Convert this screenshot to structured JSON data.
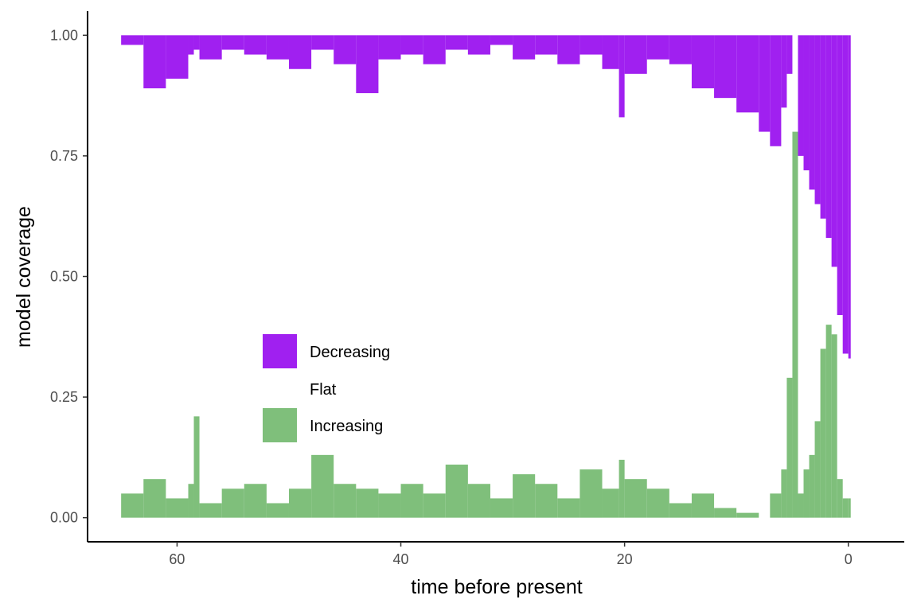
{
  "colors": {
    "decreasing": "#A020F0",
    "flat": "#FFFFFF",
    "increasing": "#7FBF7B",
    "axis": "#000000",
    "tick_text": "#4D4D4D"
  },
  "chart_data": {
    "type": "area",
    "stacked": true,
    "xlabel": "time before present",
    "ylabel": "model coverage",
    "xlim": [
      68,
      -5
    ],
    "ylim": [
      -0.05,
      1.05
    ],
    "x_reversed": true,
    "x_ticks": [
      60,
      40,
      20,
      0
    ],
    "x_tick_labels": [
      "60",
      "40",
      "20",
      "0"
    ],
    "y_ticks": [
      0,
      0.25,
      0.5,
      0.75,
      1.0
    ],
    "y_tick_labels": [
      "0.00",
      "0.25",
      "0.50",
      "0.75",
      "1.00"
    ],
    "grid": false,
    "legend_position": "inside-left-middle",
    "legend": [
      {
        "name": "Decreasing",
        "color": "#A020F0"
      },
      {
        "name": "Flat",
        "color": "#FFFFFF"
      },
      {
        "name": "Increasing",
        "color": "#7FBF7B"
      }
    ],
    "x": [
      65,
      63,
      61,
      59,
      58.5,
      58,
      56,
      54,
      52,
      50,
      48,
      46,
      44,
      42,
      40,
      38,
      36,
      34,
      32,
      30,
      28,
      26,
      24,
      22,
      20.5,
      20,
      18,
      16,
      14,
      12,
      10,
      8,
      7,
      6,
      5.5,
      5,
      4.5,
      4,
      3.5,
      3,
      2.5,
      2,
      1.5,
      1,
      0.5,
      0
    ],
    "series": [
      {
        "name": "Increasing",
        "values": [
          0.05,
          0.08,
          0.04,
          0.07,
          0.21,
          0.03,
          0.06,
          0.07,
          0.03,
          0.06,
          0.13,
          0.07,
          0.06,
          0.05,
          0.07,
          0.05,
          0.11,
          0.07,
          0.04,
          0.09,
          0.07,
          0.04,
          0.1,
          0.06,
          0.12,
          0.08,
          0.06,
          0.03,
          0.05,
          0.02,
          0.01,
          0.0,
          0.05,
          0.1,
          0.29,
          0.8,
          0.05,
          0.1,
          0.13,
          0.2,
          0.35,
          0.4,
          0.38,
          0.08,
          0.04,
          0.04
        ]
      },
      {
        "name": "Decreasing",
        "values": [
          0.02,
          0.11,
          0.09,
          0.04,
          0.03,
          0.05,
          0.03,
          0.04,
          0.05,
          0.07,
          0.03,
          0.06,
          0.12,
          0.05,
          0.04,
          0.06,
          0.03,
          0.04,
          0.02,
          0.05,
          0.04,
          0.06,
          0.04,
          0.07,
          0.17,
          0.08,
          0.05,
          0.06,
          0.11,
          0.13,
          0.16,
          0.2,
          0.23,
          0.15,
          0.08,
          0.0,
          0.25,
          0.28,
          0.32,
          0.35,
          0.38,
          0.42,
          0.48,
          0.58,
          0.66,
          0.67
        ]
      }
    ]
  }
}
